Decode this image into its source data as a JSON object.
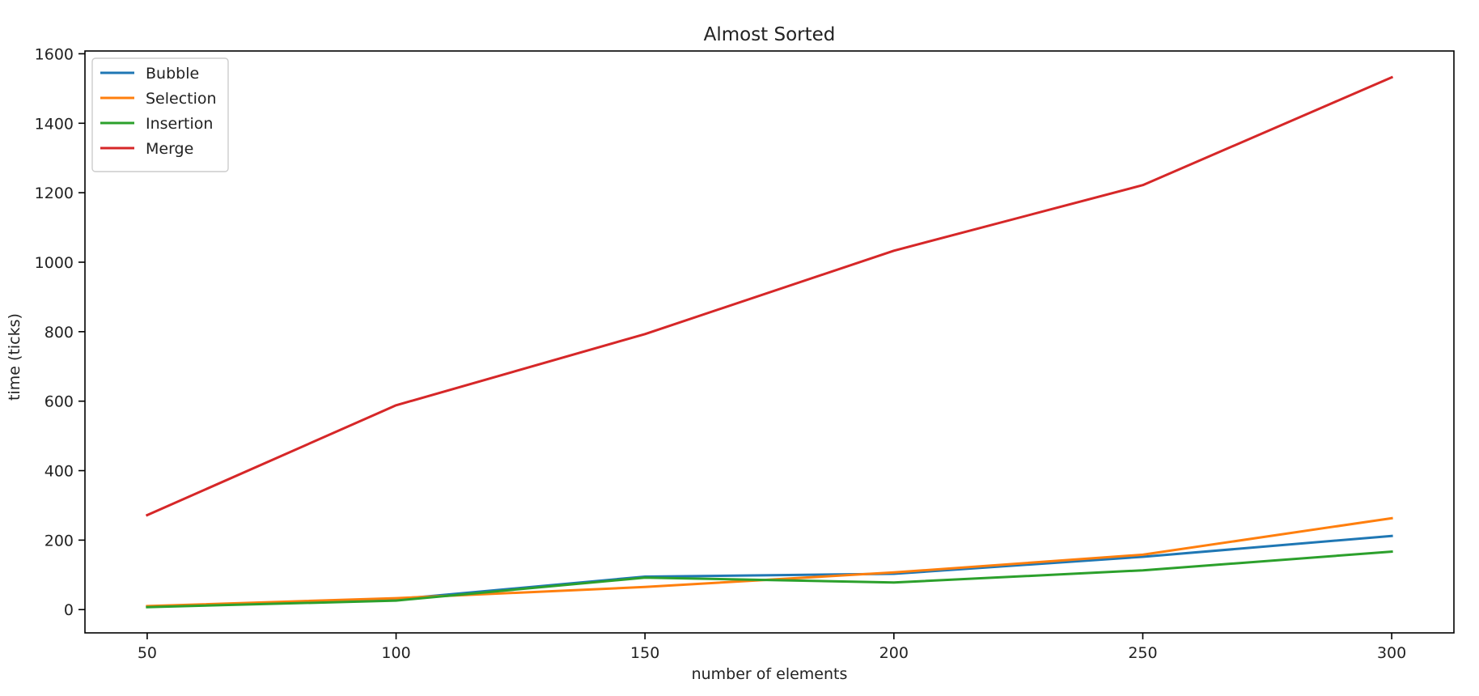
{
  "chart_data": {
    "type": "line",
    "title": "Almost Sorted",
    "xlabel": "number of elements",
    "ylabel": "time (ticks)",
    "x": [
      50,
      100,
      150,
      200,
      250,
      300
    ],
    "xticks": [
      50,
      100,
      150,
      200,
      250,
      300
    ],
    "yticks": [
      0,
      200,
      400,
      600,
      800,
      1000,
      1200,
      1400,
      1600
    ],
    "xlim": [
      37.5,
      312.5
    ],
    "ylim": [
      -67,
      1608
    ],
    "grid": false,
    "legend_position": "top-left",
    "series": [
      {
        "name": "Bubble",
        "color": "#1f77b4",
        "values": [
          8,
          30,
          95,
          103,
          152,
          212
        ]
      },
      {
        "name": "Selection",
        "color": "#ff7f0e",
        "values": [
          10,
          33,
          65,
          107,
          158,
          263
        ]
      },
      {
        "name": "Insertion",
        "color": "#2ca02c",
        "values": [
          7,
          26,
          92,
          78,
          113,
          167
        ]
      },
      {
        "name": "Merge",
        "color": "#d62728",
        "values": [
          272,
          588,
          793,
          1033,
          1222,
          1532
        ]
      }
    ]
  }
}
